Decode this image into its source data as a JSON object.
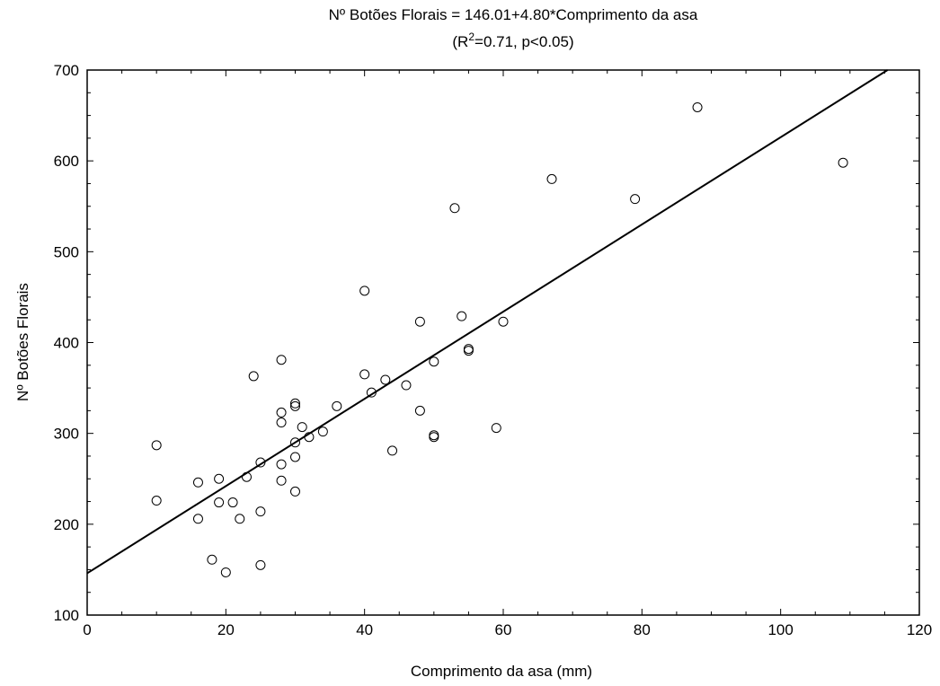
{
  "chart_data": {
    "type": "scatter",
    "title": "Nº Botões Florais = 146.01+4.80*Comprimento da asa",
    "subtitle": {
      "prefix": "(R",
      "superscript": "2",
      "suffix": "=0.71, p<0.05)"
    },
    "xlabel": "Comprimento da asa (mm)",
    "ylabel": "Nº Botões Florais",
    "xlim": [
      0,
      120
    ],
    "ylim": [
      100,
      700
    ],
    "x_ticks": [
      0,
      20,
      40,
      60,
      80,
      100,
      120
    ],
    "y_ticks": [
      100,
      200,
      300,
      400,
      500,
      600,
      700
    ],
    "grid": false,
    "regression": {
      "intercept": 146.01,
      "slope": 4.8
    },
    "points": [
      [
        10,
        287
      ],
      [
        10,
        226
      ],
      [
        16,
        246
      ],
      [
        16,
        206
      ],
      [
        18,
        161
      ],
      [
        19,
        250
      ],
      [
        19,
        224
      ],
      [
        20,
        147
      ],
      [
        21,
        224
      ],
      [
        22,
        206
      ],
      [
        23,
        252
      ],
      [
        24,
        363
      ],
      [
        25,
        268
      ],
      [
        25,
        214
      ],
      [
        25,
        155
      ],
      [
        28,
        381
      ],
      [
        28,
        323
      ],
      [
        28,
        312
      ],
      [
        28,
        266
      ],
      [
        28,
        248
      ],
      [
        30,
        333
      ],
      [
        30,
        330
      ],
      [
        30,
        290
      ],
      [
        30,
        274
      ],
      [
        30,
        236
      ],
      [
        31,
        307
      ],
      [
        32,
        296
      ],
      [
        34,
        302
      ],
      [
        36,
        330
      ],
      [
        40,
        457
      ],
      [
        40,
        365
      ],
      [
        41,
        345
      ],
      [
        43,
        359
      ],
      [
        44,
        281
      ],
      [
        46,
        353
      ],
      [
        48,
        423
      ],
      [
        48,
        325
      ],
      [
        50,
        379
      ],
      [
        50,
        298
      ],
      [
        50,
        296
      ],
      [
        53,
        548
      ],
      [
        54,
        429
      ],
      [
        55,
        393
      ],
      [
        55,
        391
      ],
      [
        59,
        306
      ],
      [
        60,
        423
      ],
      [
        67,
        580
      ],
      [
        79,
        558
      ],
      [
        88,
        659
      ],
      [
        109,
        598
      ]
    ]
  }
}
